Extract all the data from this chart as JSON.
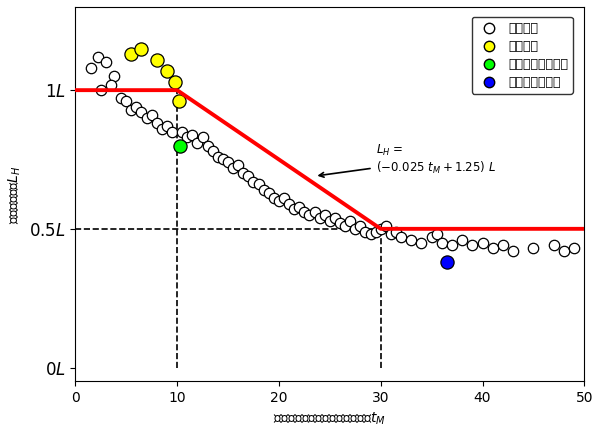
{
  "xlabel": "圧密沈下による影響評価係数　$t_M$",
  "ylabel": "換算載荷長　$L_H$",
  "xlim": [
    0,
    50
  ],
  "ylim": [
    -0.05,
    1.3
  ],
  "ytick_vals": [
    0,
    0.5,
    1.0
  ],
  "ytick_labels": [
    "$0L$",
    "$0.5L$",
    "$1L$"
  ],
  "xticks": [
    0,
    10,
    20,
    30,
    40,
    50
  ],
  "red_line_x": [
    0,
    10,
    30,
    50
  ],
  "red_line_y": [
    1.0,
    1.0,
    0.5,
    0.5
  ],
  "dashed_vlines": [
    10,
    30
  ],
  "dashed_hlines": [
    0.5
  ],
  "white_circles": [
    [
      1.5,
      1.08
    ],
    [
      2.2,
      1.12
    ],
    [
      3.0,
      1.1
    ],
    [
      3.8,
      1.05
    ],
    [
      2.5,
      1.0
    ],
    [
      3.5,
      1.02
    ],
    [
      4.5,
      0.97
    ],
    [
      5.0,
      0.96
    ],
    [
      5.5,
      0.93
    ],
    [
      6.0,
      0.94
    ],
    [
      6.5,
      0.92
    ],
    [
      7.0,
      0.9
    ],
    [
      7.5,
      0.91
    ],
    [
      8.0,
      0.88
    ],
    [
      8.5,
      0.86
    ],
    [
      9.0,
      0.87
    ],
    [
      9.5,
      0.85
    ],
    [
      10.5,
      0.85
    ],
    [
      11.0,
      0.83
    ],
    [
      11.5,
      0.84
    ],
    [
      12.0,
      0.81
    ],
    [
      12.5,
      0.83
    ],
    [
      13.0,
      0.8
    ],
    [
      13.5,
      0.78
    ],
    [
      14.0,
      0.76
    ],
    [
      14.5,
      0.75
    ],
    [
      15.0,
      0.74
    ],
    [
      15.5,
      0.72
    ],
    [
      16.0,
      0.73
    ],
    [
      16.5,
      0.7
    ],
    [
      17.0,
      0.69
    ],
    [
      17.5,
      0.67
    ],
    [
      18.0,
      0.66
    ],
    [
      18.5,
      0.64
    ],
    [
      19.0,
      0.63
    ],
    [
      19.5,
      0.61
    ],
    [
      20.0,
      0.6
    ],
    [
      20.5,
      0.61
    ],
    [
      21.0,
      0.59
    ],
    [
      21.5,
      0.57
    ],
    [
      22.0,
      0.58
    ],
    [
      22.5,
      0.56
    ],
    [
      23.0,
      0.55
    ],
    [
      23.5,
      0.56
    ],
    [
      24.0,
      0.54
    ],
    [
      24.5,
      0.55
    ],
    [
      25.0,
      0.53
    ],
    [
      25.5,
      0.54
    ],
    [
      26.0,
      0.52
    ],
    [
      26.5,
      0.51
    ],
    [
      27.0,
      0.53
    ],
    [
      27.5,
      0.5
    ],
    [
      28.0,
      0.51
    ],
    [
      28.5,
      0.49
    ],
    [
      29.0,
      0.48
    ],
    [
      29.5,
      0.49
    ],
    [
      30.0,
      0.5
    ],
    [
      30.5,
      0.51
    ],
    [
      31.0,
      0.48
    ],
    [
      31.5,
      0.49
    ],
    [
      32.0,
      0.47
    ],
    [
      33.0,
      0.46
    ],
    [
      34.0,
      0.45
    ],
    [
      35.0,
      0.47
    ],
    [
      35.5,
      0.48
    ],
    [
      36.0,
      0.45
    ],
    [
      37.0,
      0.44
    ],
    [
      38.0,
      0.46
    ],
    [
      39.0,
      0.44
    ],
    [
      40.0,
      0.45
    ],
    [
      41.0,
      0.43
    ],
    [
      42.0,
      0.44
    ],
    [
      43.0,
      0.42
    ],
    [
      45.0,
      0.43
    ],
    [
      47.0,
      0.44
    ],
    [
      48.0,
      0.42
    ],
    [
      49.0,
      0.43
    ]
  ],
  "yellow_circles": [
    [
      5.5,
      1.13
    ],
    [
      6.5,
      1.15
    ],
    [
      8.0,
      1.11
    ],
    [
      9.0,
      1.07
    ],
    [
      9.8,
      1.03
    ],
    [
      10.2,
      0.96
    ]
  ],
  "green_circles": [
    [
      10.3,
      0.8
    ]
  ],
  "blue_circles": [
    [
      36.5,
      0.38
    ]
  ],
  "legend_entries": [
    "解析結果",
    "遠心実験",
    "佐藤らの現場計測",
    "高橋の現場計測"
  ],
  "background_color": "white",
  "marker_size": 7.5
}
